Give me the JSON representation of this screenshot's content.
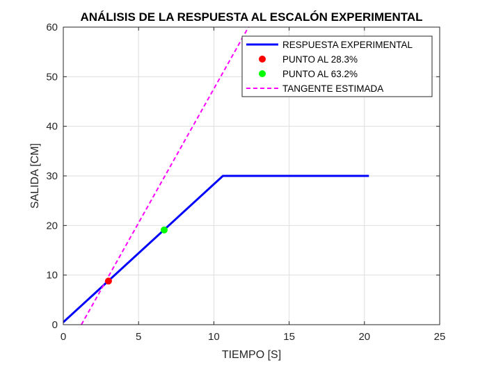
{
  "chart_data": {
    "type": "line",
    "title": "ANÁLISIS DE LA RESPUESTA AL ESCALÓN EXPERIMENTAL",
    "xlabel": "TIEMPO [S]",
    "ylabel": "SALIDA [CM]",
    "xlim": [
      0,
      25
    ],
    "ylim": [
      0,
      60
    ],
    "x_ticks": [
      0,
      5,
      10,
      15,
      20,
      25
    ],
    "y_ticks": [
      0,
      10,
      20,
      30,
      40,
      50,
      60
    ],
    "grid": true,
    "legend_position": "top-right",
    "series": [
      {
        "name": "RESPUESTA EXPERIMENTAL",
        "style": "solid-line",
        "color": "#0000ff",
        "x": [
          0,
          10.6,
          20.3
        ],
        "y": [
          0.5,
          30.0,
          30.0
        ]
      },
      {
        "name": "PUNTO AL 28.3%",
        "style": "marker",
        "color": "#ff0000",
        "x": [
          3.0
        ],
        "y": [
          8.8
        ]
      },
      {
        "name": "PUNTO AL 63.2%",
        "style": "marker",
        "color": "#00ff00",
        "x": [
          6.7
        ],
        "y": [
          19.1
        ]
      },
      {
        "name": "TANGENTE ESTIMADA",
        "style": "dashed-line",
        "color": "#ff00ff",
        "x": [
          1.2,
          12.3
        ],
        "y": [
          0.0,
          60.0
        ]
      }
    ]
  }
}
